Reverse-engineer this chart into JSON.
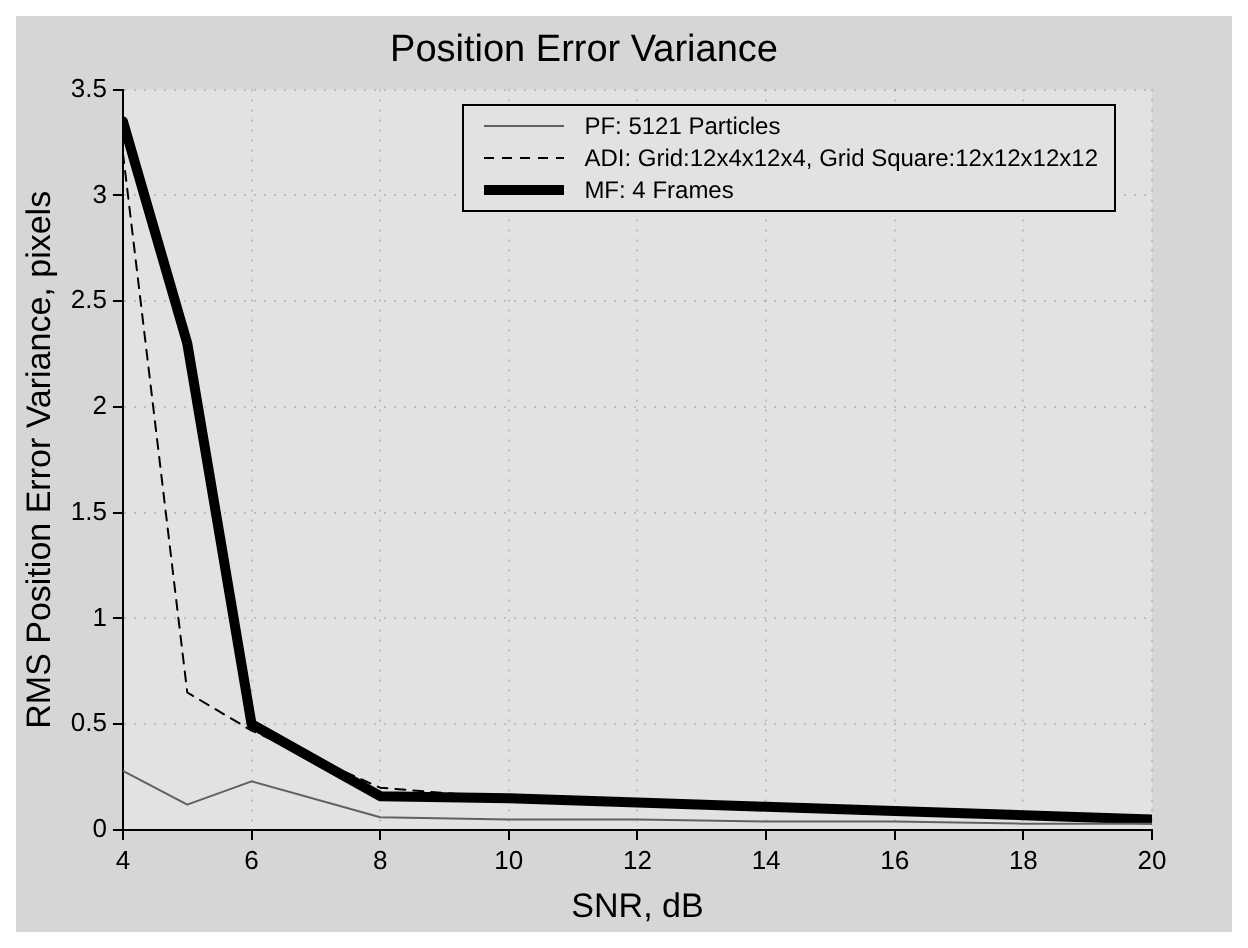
{
  "chart_data": {
    "type": "line",
    "title": "Position Error Variance",
    "xlabel": "SNR, dB",
    "ylabel": "RMS Position Error Variance, pixels",
    "x": [
      4,
      5,
      6,
      8,
      10,
      12,
      14,
      16,
      18,
      20
    ],
    "series": [
      {
        "name": "PF: 5121 Particles",
        "color": "#606060",
        "line_style": "solid",
        "values": [
          0.28,
          0.12,
          0.23,
          0.06,
          0.05,
          0.05,
          0.04,
          0.04,
          0.03,
          0.03
        ]
      },
      {
        "name": "ADI: Grid:12x4x12x4, Grid Square:12x12x12x12",
        "color": "#000000",
        "line_style": "dashed",
        "values": [
          3.2,
          0.65,
          0.47,
          0.2,
          0.15,
          0.13,
          0.11,
          0.09,
          0.07,
          0.05
        ]
      },
      {
        "name": "MF: 4 Frames",
        "color": "#000000",
        "line_style": "solid",
        "values": [
          3.35,
          2.3,
          0.5,
          0.16,
          0.15,
          0.13,
          0.11,
          0.09,
          0.07,
          0.05
        ]
      }
    ],
    "xlim": [
      4,
      20
    ],
    "xticks": [
      4,
      6,
      8,
      10,
      12,
      14,
      16,
      18,
      20
    ],
    "ylim": [
      0,
      3.5
    ],
    "yticks": [
      0,
      0.5,
      1,
      1.5,
      2,
      2.5,
      3,
      3.5
    ],
    "grid": true,
    "legend": "top right",
    "marker": "none"
  }
}
